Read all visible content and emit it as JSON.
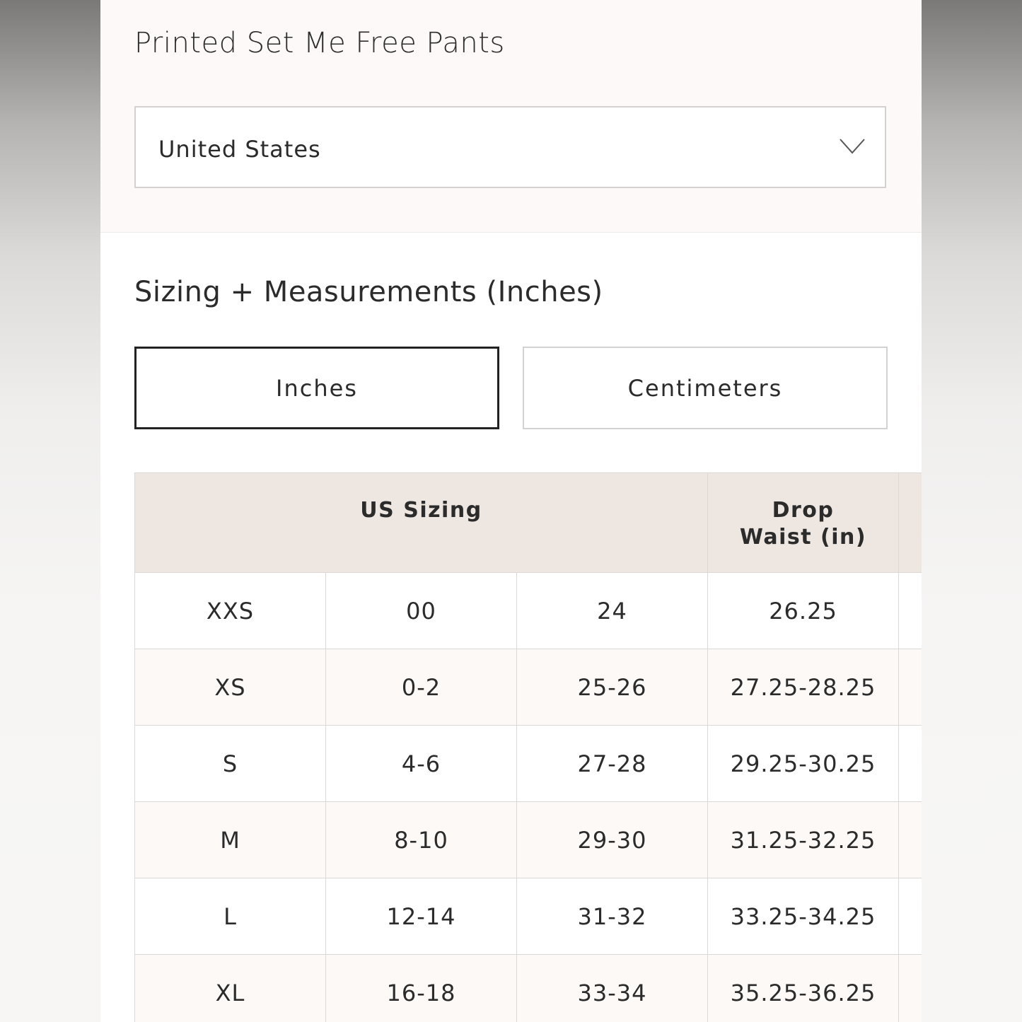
{
  "product_title": "Printed Set Me Free Pants",
  "region_select": {
    "value": "United States",
    "icon": "chevron-down-icon"
  },
  "section_title": "Sizing + Measurements (Inches)",
  "unit_toggle": {
    "options": [
      "Inches",
      "Centimeters"
    ],
    "selected": "Inches"
  },
  "table": {
    "headers": [
      "US Sizing",
      "Drop\nWaist (in)"
    ],
    "rows": [
      [
        "XXS",
        "00",
        "24",
        "26.25"
      ],
      [
        "XS",
        "0-2",
        "25-26",
        "27.25-28.25"
      ],
      [
        "S",
        "4-6",
        "27-28",
        "29.25-30.25"
      ],
      [
        "M",
        "8-10",
        "29-30",
        "31.25-32.25"
      ],
      [
        "L",
        "12-14",
        "31-32",
        "33.25-34.25"
      ],
      [
        "XL",
        "16-18",
        "33-34",
        "35.25-36.25"
      ]
    ]
  },
  "colors": {
    "header_bg": "#ede6e1",
    "top_bg": "#fcf9f8",
    "active_border": "#222222"
  }
}
